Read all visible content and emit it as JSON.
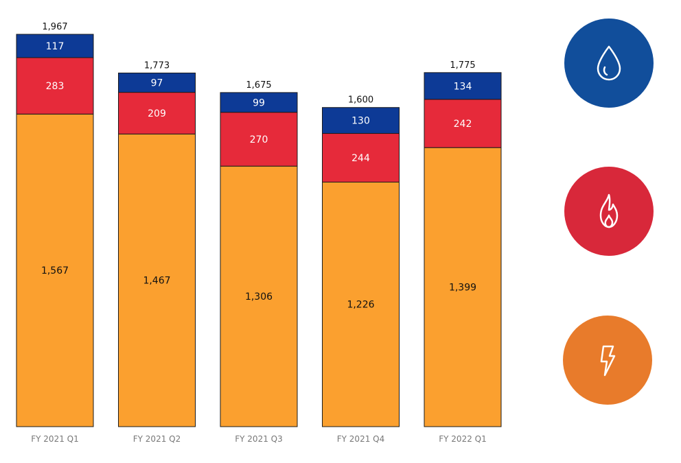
{
  "chart_data": {
    "type": "bar",
    "stacked": true,
    "categories": [
      "FY 2021 Q1",
      "FY 2021 Q2",
      "FY 2021 Q3",
      "FY 2021 Q4",
      "FY 2022 Q1"
    ],
    "series": [
      {
        "color": "#FBA02F",
        "values": [
          1567,
          1467,
          1306,
          1226,
          1399
        ],
        "labels": [
          "1,567",
          "1,467",
          "1,306",
          "1,226",
          "1,399"
        ],
        "label_color": "#111111"
      },
      {
        "color": "#E62A3A",
        "values": [
          283,
          209,
          270,
          244,
          242
        ],
        "labels": [
          "283",
          "209",
          "270",
          "244",
          "242"
        ],
        "label_color": "#ffffff"
      },
      {
        "color": "#0D3A96",
        "values": [
          117,
          97,
          99,
          130,
          134
        ],
        "labels": [
          "117",
          "97",
          "99",
          "130",
          "134"
        ],
        "label_color": "#ffffff"
      }
    ],
    "totals": [
      1967,
      1773,
      1675,
      1600,
      1775
    ],
    "total_labels": [
      "1,967",
      "1,773",
      "1,675",
      "1,600",
      "1,775"
    ],
    "ylim": [
      0,
      1967
    ],
    "grid": false,
    "title": "",
    "xlabel": "",
    "ylabel": ""
  },
  "legend_icons": [
    {
      "icon": "water-drop-icon",
      "color": "#114E9B"
    },
    {
      "icon": "flame-icon",
      "color": "#D8283A"
    },
    {
      "icon": "lightning-bolt-icon",
      "color": "#E87B2B"
    }
  ]
}
